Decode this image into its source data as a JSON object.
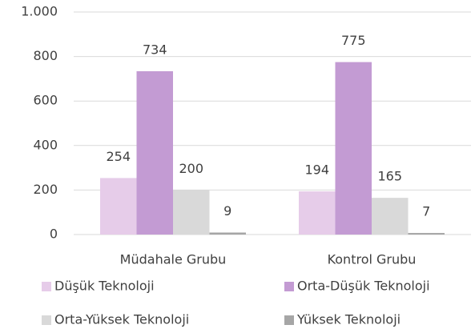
{
  "chart_data": {
    "type": "bar",
    "categories": [
      "Müdahale Grubu",
      "Kontrol Grubu"
    ],
    "series": [
      {
        "name": "Düşük Teknoloji",
        "color": "#e6cce9",
        "values": [
          254,
          194
        ]
      },
      {
        "name": "Orta-Düşük Teknoloji",
        "color": "#c39bd3",
        "values": [
          734,
          775
        ]
      },
      {
        "name": "Orta-Yüksek Teknoloji",
        "color": "#d9d9d9",
        "values": [
          200,
          165
        ]
      },
      {
        "name": "Yüksek Teknoloji",
        "color": "#a6a6a6",
        "values": [
          9,
          7
        ]
      }
    ],
    "ylim": [
      0,
      1000
    ],
    "yticks": [
      0,
      200,
      400,
      600,
      800,
      {
        "value": 1000,
        "label": "1.000"
      }
    ],
    "grid": true,
    "legend": "bottom"
  }
}
